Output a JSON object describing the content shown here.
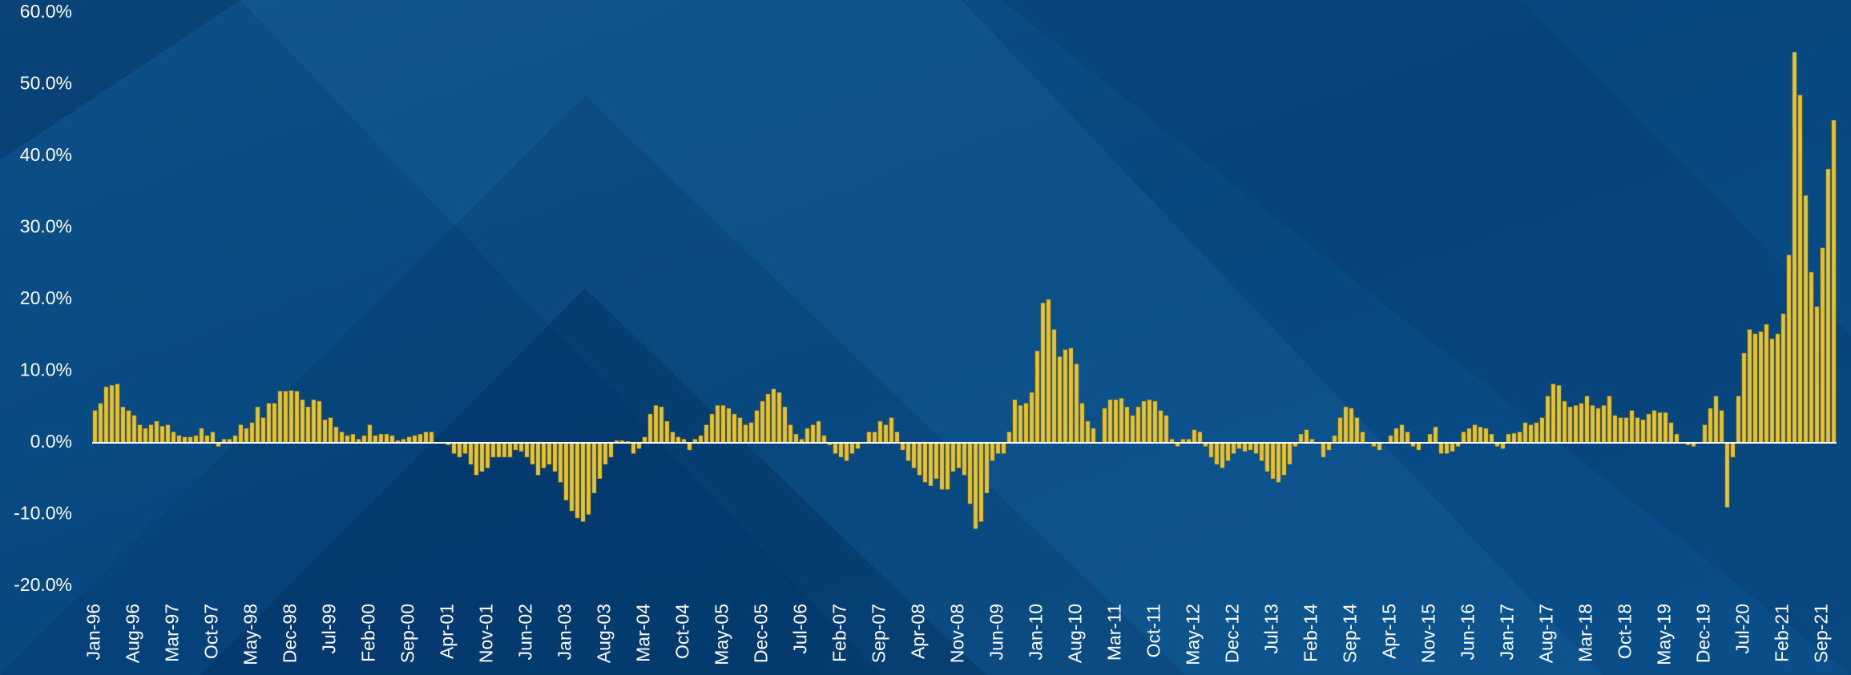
{
  "chart_data": {
    "type": "bar",
    "categories": [
      "Jan-96",
      null,
      null,
      null,
      null,
      null,
      null,
      "Aug-96",
      null,
      null,
      null,
      null,
      null,
      null,
      "Mar-97",
      null,
      null,
      null,
      null,
      null,
      null,
      "Oct-97",
      null,
      null,
      null,
      null,
      null,
      null,
      "May-98",
      null,
      null,
      null,
      null,
      null,
      null,
      "Dec-98",
      null,
      null,
      null,
      null,
      null,
      null,
      "Jul-99",
      null,
      null,
      null,
      null,
      null,
      null,
      "Feb-00",
      null,
      null,
      null,
      null,
      null,
      null,
      "Sep-00",
      null,
      null,
      null,
      null,
      null,
      null,
      "Apr-01",
      null,
      null,
      null,
      null,
      null,
      null,
      "Nov-01",
      null,
      null,
      null,
      null,
      null,
      null,
      "Jun-02",
      null,
      null,
      null,
      null,
      null,
      null,
      "Jan-03",
      null,
      null,
      null,
      null,
      null,
      null,
      "Aug-03",
      null,
      null,
      null,
      null,
      null,
      null,
      "Mar-04",
      null,
      null,
      null,
      null,
      null,
      null,
      "Oct-04",
      null,
      null,
      null,
      null,
      null,
      null,
      "May-05",
      null,
      null,
      null,
      null,
      null,
      null,
      "Dec-05",
      null,
      null,
      null,
      null,
      null,
      null,
      "Jul-06",
      null,
      null,
      null,
      null,
      null,
      null,
      "Feb-07",
      null,
      null,
      null,
      null,
      null,
      null,
      "Sep-07",
      null,
      null,
      null,
      null,
      null,
      null,
      "Apr-08",
      null,
      null,
      null,
      null,
      null,
      null,
      "Nov-08",
      null,
      null,
      null,
      null,
      null,
      null,
      "Jun-09",
      null,
      null,
      null,
      null,
      null,
      null,
      "Jan-10",
      null,
      null,
      null,
      null,
      null,
      null,
      "Aug-10",
      null,
      null,
      null,
      null,
      null,
      null,
      "Mar-11",
      null,
      null,
      null,
      null,
      null,
      null,
      "Oct-11",
      null,
      null,
      null,
      null,
      null,
      null,
      "May-12",
      null,
      null,
      null,
      null,
      null,
      null,
      "Dec-12",
      null,
      null,
      null,
      null,
      null,
      null,
      "Jul-13",
      null,
      null,
      null,
      null,
      null,
      null,
      "Feb-14",
      null,
      null,
      null,
      null,
      null,
      null,
      "Sep-14",
      null,
      null,
      null,
      null,
      null,
      null,
      "Apr-15",
      null,
      null,
      null,
      null,
      null,
      null,
      "Nov-15",
      null,
      null,
      null,
      null,
      null,
      null,
      "Jun-16",
      null,
      null,
      null,
      null,
      null,
      null,
      "Jan-17",
      null,
      null,
      null,
      null,
      null,
      null,
      "Aug-17",
      null,
      null,
      null,
      null,
      null,
      null,
      "Mar-18",
      null,
      null,
      null,
      null,
      null,
      null,
      "Oct-18",
      null,
      null,
      null,
      null,
      null,
      null,
      "May-19",
      null,
      null,
      null,
      null,
      null,
      null,
      "Dec-19",
      null,
      null,
      null,
      null,
      null,
      null,
      "Jul-20",
      null,
      null,
      null,
      null,
      null,
      null,
      "Feb-21",
      null,
      null,
      null,
      null,
      null,
      null,
      "Sep-21",
      null,
      null
    ],
    "values": [
      4.5,
      5.5,
      7.8,
      8,
      8.2,
      5,
      4.5,
      3.8,
      2.5,
      2,
      2.5,
      3,
      2.3,
      2.5,
      1.5,
      1,
      0.8,
      0.8,
      1,
      2,
      1,
      1.5,
      -0.5,
      0.5,
      0.5,
      1,
      2.5,
      2,
      2.8,
      5,
      3.5,
      5.5,
      5.5,
      7.2,
      7.2,
      7.3,
      7.2,
      6,
      5,
      6,
      5.8,
      3.2,
      3.5,
      2.2,
      1.5,
      1,
      1.2,
      0.5,
      1,
      2.5,
      1,
      1.2,
      1.2,
      1,
      0.3,
      0.5,
      0.8,
      1,
      1.2,
      1.5,
      1.5,
      0,
      0,
      -0.3,
      -1.5,
      -2,
      -1.5,
      -3,
      -4.5,
      -4,
      -3.5,
      -2,
      -2,
      -2,
      -2,
      -1,
      -1.2,
      -2,
      -3,
      -4.5,
      -3.5,
      -3,
      -4,
      -5.5,
      -8,
      -9.5,
      -10.5,
      -11,
      -10,
      -7,
      -5,
      -3,
      -2,
      0.3,
      0.3,
      0.2,
      -1.5,
      -0.8,
      0.8,
      4,
      5.2,
      5,
      3,
      1.5,
      0.8,
      0.5,
      -1,
      0.5,
      1,
      2.5,
      4,
      5.2,
      5.2,
      4.8,
      4,
      3.5,
      2.5,
      2.8,
      4.5,
      5.8,
      6.8,
      7.5,
      7,
      5,
      2.5,
      1.2,
      0.5,
      2,
      2.5,
      3,
      1,
      -0.3,
      -1.5,
      -2,
      -2.5,
      -1.5,
      -0.8,
      0,
      1.5,
      1.5,
      3,
      2.5,
      3.5,
      1.5,
      -1,
      -2.5,
      -3.5,
      -4.5,
      -5.5,
      -6,
      -5,
      -6.5,
      -6.5,
      -4,
      -3.5,
      -4.5,
      -8.5,
      -12,
      -11,
      -7,
      -2.5,
      -1.5,
      -1.5,
      1.5,
      6,
      5.2,
      5.5,
      7,
      12.8,
      19.5,
      20,
      15.8,
      12,
      13,
      13.2,
      11,
      5.5,
      3,
      2,
      0,
      4.8,
      6,
      6,
      6.2,
      5,
      3.8,
      5,
      5.8,
      6,
      5.8,
      4.5,
      3.8,
      0.5,
      -0.5,
      0.5,
      0.5,
      1.8,
      1.5,
      -0.5,
      -2,
      -3,
      -3.5,
      -2.5,
      -1.5,
      -0.8,
      -1.2,
      -1,
      -1.5,
      -2.5,
      -4,
      -5,
      -5.5,
      -4.5,
      -3,
      -0.5,
      1.2,
      1.8,
      0.5,
      0,
      -2,
      -1,
      1,
      3.5,
      5,
      4.8,
      3.5,
      1.5,
      0,
      -0.5,
      -1,
      0,
      1,
      2,
      2.5,
      1.5,
      -0.5,
      -1,
      0,
      1.2,
      2.2,
      -1.5,
      -1.5,
      -1.2,
      -0.5,
      1.5,
      2,
      2.5,
      2.2,
      2,
      1.2,
      -0.5,
      -0.8,
      1.2,
      1.3,
      1.5,
      2.8,
      2.5,
      2.8,
      3.5,
      6.5,
      8.2,
      8,
      5.8,
      5,
      5.2,
      5.5,
      6.5,
      5.2,
      4.8,
      5.2,
      6.5,
      3.8,
      3.5,
      3.5,
      4.5,
      3.5,
      3.2,
      4,
      4.5,
      4.2,
      4.2,
      2.8,
      1.2,
      0,
      -0.3,
      -0.5,
      0,
      2.5,
      4.8,
      6.5,
      4.5,
      -9,
      -2,
      6.5,
      12.5,
      15.8,
      15.2,
      15.5,
      16.5,
      14.5,
      15.2,
      18,
      26.2,
      54.5,
      48.5,
      34.5,
      23.8,
      19,
      27.2,
      38.2,
      45
    ],
    "color": "#e6c233",
    "ylim": [
      -20,
      60
    ],
    "yticks": [
      {
        "value": -20,
        "label": "-20.0%"
      },
      {
        "value": -10,
        "label": "-10.0%"
      },
      {
        "value": 0,
        "label": "0.0%"
      },
      {
        "value": 10,
        "label": "10.0%"
      },
      {
        "value": 20,
        "label": "20.0%"
      },
      {
        "value": 30,
        "label": "30.0%"
      },
      {
        "value": 40,
        "label": "40.0%"
      },
      {
        "value": 50,
        "label": "50.0%"
      },
      {
        "value": 60,
        "label": "60.0%"
      }
    ],
    "grid": false
  }
}
